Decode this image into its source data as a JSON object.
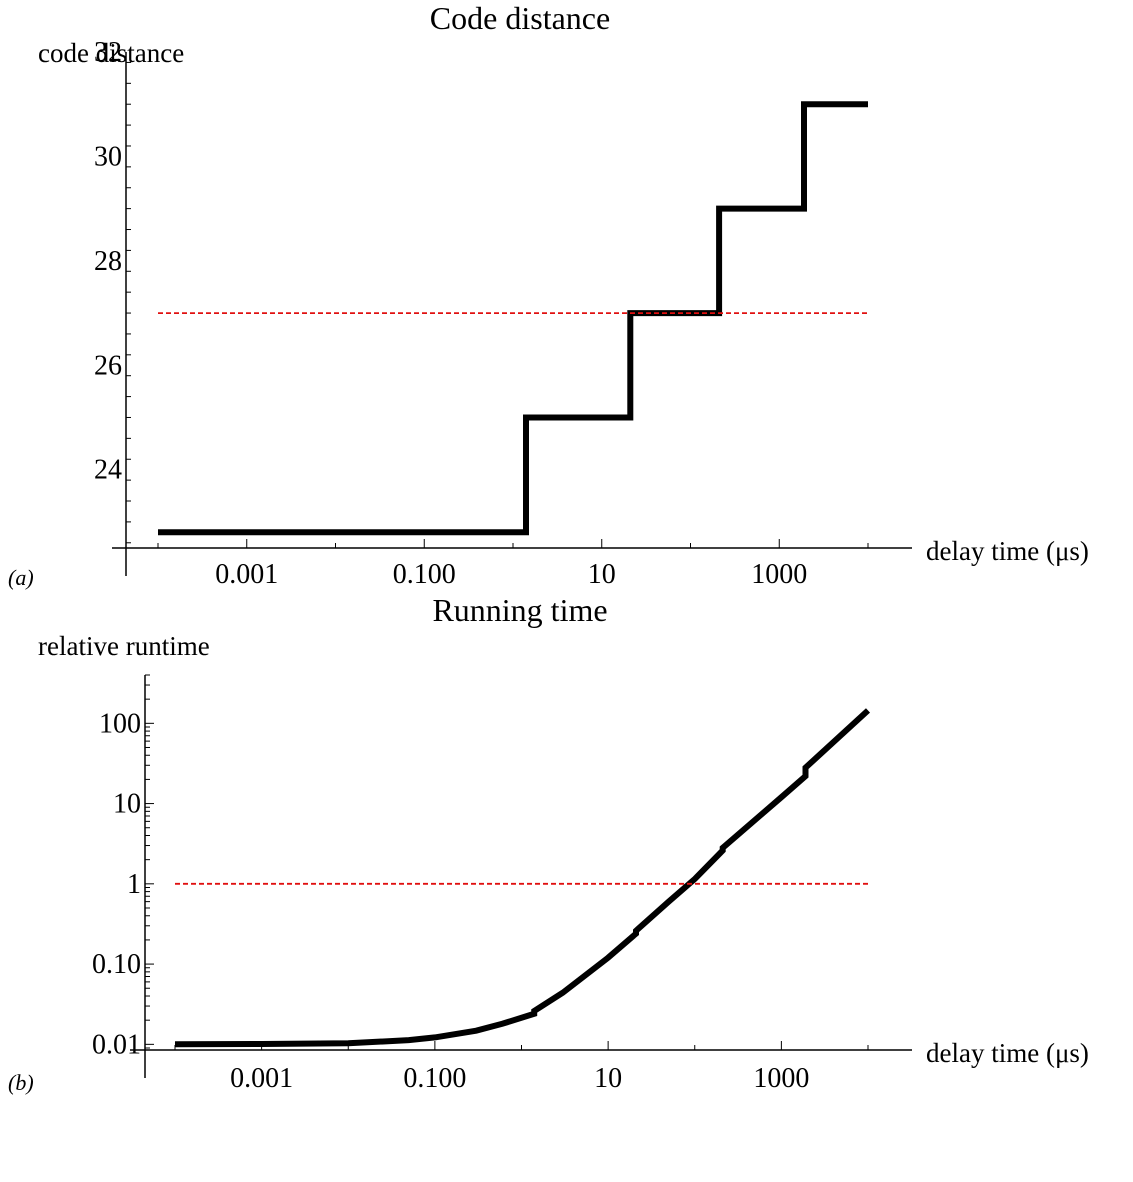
{
  "chart_data": [
    {
      "panel_label": "(a)",
      "type": "line",
      "title": "Code distance",
      "xlabel": "delay time (μs)",
      "ylabel": "code distance",
      "xscale": "log",
      "xlim": [
        0.0001,
        10000
      ],
      "ylim": [
        22.5,
        32
      ],
      "x_ticks": [
        0.001,
        0.1,
        10,
        1000
      ],
      "x_tick_labels": [
        "0.001",
        "0.100",
        "10",
        "1000"
      ],
      "y_ticks": [
        24,
        26,
        28,
        30,
        32
      ],
      "y_tick_labels": [
        "24",
        "26",
        "28",
        "30",
        "32"
      ],
      "grid": false,
      "series": [
        {
          "style": "step",
          "color": "#000000",
          "x": [
            0.0001,
            1.4,
            1.4,
            21,
            21,
            210,
            210,
            1900,
            1900,
            10000
          ],
          "y": [
            22.8,
            22.8,
            25,
            25,
            27,
            27,
            29,
            29,
            31,
            31
          ]
        },
        {
          "style": "dashed",
          "color": "#e01010",
          "x": [
            0.0001,
            10000
          ],
          "y": [
            27,
            27
          ]
        }
      ]
    },
    {
      "panel_label": "(b)",
      "type": "line",
      "title": "Running time",
      "xlabel": "delay time (μs)",
      "ylabel": "relative runtime",
      "xscale": "log",
      "yscale": "log",
      "xlim": [
        0.0001,
        10000
      ],
      "ylim": [
        0.0085,
        400
      ],
      "x_ticks": [
        0.001,
        0.1,
        10,
        1000
      ],
      "x_tick_labels": [
        "0.001",
        "0.100",
        "10",
        "1000"
      ],
      "y_ticks": [
        0.01,
        0.1,
        1,
        10,
        100
      ],
      "y_tick_labels": [
        "0.01",
        "0.10",
        "1",
        "10",
        "100"
      ],
      "grid": false,
      "series": [
        {
          "style": "line",
          "color": "#000000",
          "x": [
            0.0001,
            0.001,
            0.01,
            0.05,
            0.1,
            0.3,
            0.6,
            1.4,
            1.4,
            3,
            10,
            21,
            21,
            50,
            100,
            210,
            210,
            1000,
            1900,
            1900,
            10000
          ],
          "y": [
            0.01,
            0.0101,
            0.0103,
            0.0113,
            0.0122,
            0.0148,
            0.018,
            0.024,
            0.026,
            0.044,
            0.12,
            0.24,
            0.26,
            0.6,
            1.15,
            2.6,
            2.8,
            12,
            22,
            28,
            145
          ]
        },
        {
          "style": "dashed",
          "color": "#e01010",
          "x": [
            0.0001,
            10000
          ],
          "y": [
            1,
            1
          ]
        }
      ]
    }
  ]
}
